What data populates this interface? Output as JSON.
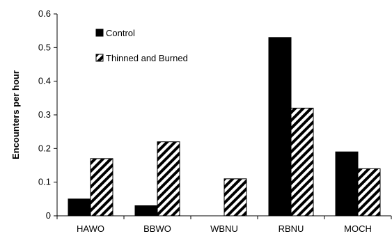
{
  "chart_data": {
    "type": "bar",
    "categories": [
      "HAWO",
      "BBWO",
      "WBNU",
      "RBNU",
      "MOCH"
    ],
    "series": [
      {
        "name": "Control",
        "values": [
          0.05,
          0.03,
          0.0,
          0.53,
          0.19
        ],
        "fill": "#000000",
        "pattern": "solid"
      },
      {
        "name": "Thinned and Burned",
        "values": [
          0.17,
          0.22,
          0.11,
          0.32,
          0.14
        ],
        "fill": "#000000",
        "pattern": "diagonal-hatch"
      }
    ],
    "ylabel": "Encounters per hour",
    "xlabel": "",
    "ylim": [
      0,
      0.6
    ],
    "yticks": [
      "0",
      "0.1",
      "0.2",
      "0.3",
      "0.4",
      "0.5",
      "0.6"
    ],
    "grid": false,
    "legend_position": "top-left"
  }
}
